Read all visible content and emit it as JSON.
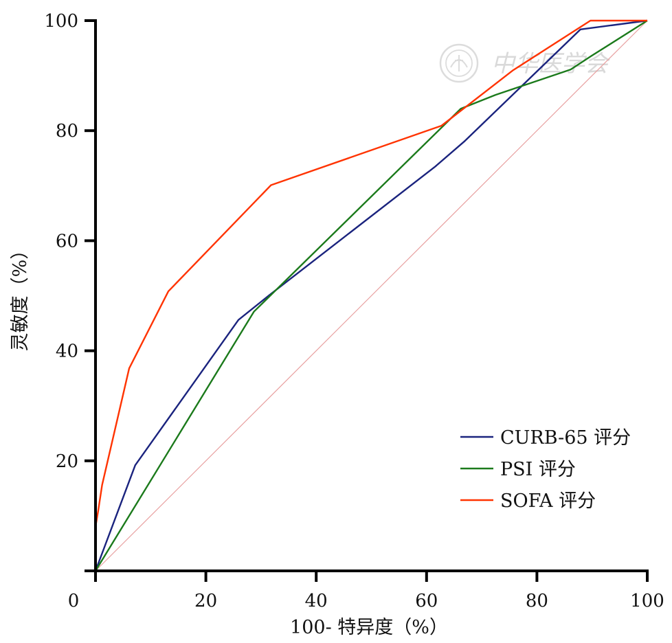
{
  "watermark": {
    "text": "中华医学会",
    "icon": "seal-emblem-icon"
  },
  "chart_data": {
    "type": "line",
    "title": "",
    "xlabel": "100- 特异度（%）",
    "ylabel": "灵敏度（%）",
    "xlim": [
      0,
      100
    ],
    "ylim": [
      0,
      100
    ],
    "xticks": [
      0,
      20,
      40,
      60,
      80,
      100
    ],
    "yticks": [
      0,
      20,
      40,
      60,
      80,
      100
    ],
    "grid": false,
    "legend_position": "bottom-right",
    "reference_line": {
      "x": [
        0,
        100
      ],
      "y": [
        0,
        100
      ],
      "color": "#e8a0a0"
    },
    "series": [
      {
        "name": "CURB-65 评分",
        "color": "#1a237e",
        "x": [
          0,
          7.2,
          25.9,
          31.5,
          61.6,
          66.8,
          87.9,
          100
        ],
        "y": [
          0,
          19.2,
          45.6,
          50.1,
          73.5,
          78.0,
          98.4,
          100
        ]
      },
      {
        "name": "PSI 评分",
        "color": "#1b7a1b",
        "x": [
          0,
          28.7,
          66.2,
          72.5,
          86.1,
          89.9,
          100
        ],
        "y": [
          0,
          47.1,
          84.0,
          86.5,
          91.1,
          93.6,
          100
        ]
      },
      {
        "name": "SOFA 评分",
        "color": "#ff3300",
        "x": [
          0,
          0.5,
          1.2,
          6.1,
          13.2,
          31.8,
          62.7,
          75.7,
          89.7,
          100
        ],
        "y": [
          8.0,
          11.0,
          15.6,
          36.8,
          50.8,
          70.1,
          80.9,
          91.0,
          100,
          100
        ]
      }
    ]
  }
}
